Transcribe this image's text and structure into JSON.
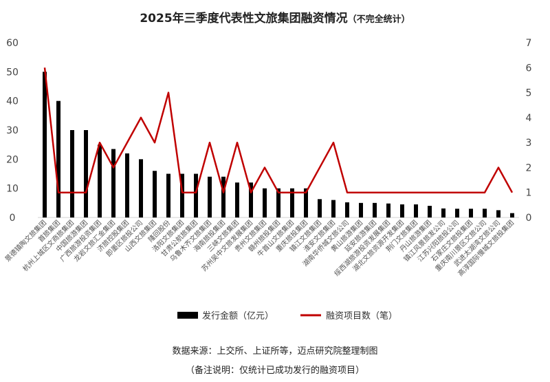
{
  "chart_data": {
    "type": "bar",
    "title": "2025年三季度代表性文旅集团融资情况",
    "title_suffix": "（不完全统计）",
    "categories": [
      "景德镇陶文旅集团",
      "首旅集团",
      "杭州上城区文商旅集团",
      "中国旅游集团",
      "广西旅游投资集团",
      "龙岩文旅汇金集团",
      "济旅控股集团",
      "即墨区旅投公司",
      "山西文旅集团",
      "隆回股份",
      "洛阳文旅集团",
      "甘肃公航旅集团",
      "乌鲁木齐文旅集团",
      "海南旅投集团",
      "三峡文旅集团",
      "苏州吴中文旅发展集团",
      "贵州文旅集团",
      "赣州旅投集团",
      "牛首山文旅集团",
      "重庆旅投集团",
      "镇江文旅集团",
      "淮安文旅集团",
      "湖南华侨城文旅公司",
      "黄山旅游集团",
      "延安旅游集团",
      "绥西湖旅游投资发展集团",
      "湖北文旅资源开发集团",
      "荆门文旅集团",
      "丹山旅游集团",
      "镇江风景旅发公司",
      "江苏兴阳旅投公司",
      "石家庄文旅投集团",
      "重庆南川景区文旅公司",
      "武进太湖湾文旅公司",
      "高淳国际慢城文旅投集团"
    ],
    "series": [
      {
        "name": "发行金额（亿元）",
        "type": "bar",
        "axis": "left",
        "color": "#000000",
        "values": [
          50,
          40,
          30,
          30,
          25,
          23.5,
          22,
          20,
          16,
          15,
          15,
          15,
          14,
          14,
          12,
          12,
          10,
          10,
          10,
          10,
          6.3,
          6,
          5.2,
          5,
          5,
          4.8,
          4.5,
          4.5,
          4,
          3.1,
          3,
          3,
          3,
          2.5,
          1.5
        ]
      },
      {
        "name": "融资项目数（笔）",
        "type": "line",
        "axis": "right",
        "color": "#c00000",
        "values": [
          6,
          1,
          1,
          1,
          3,
          2,
          3,
          4,
          3,
          5,
          1,
          1,
          3,
          1,
          3,
          1,
          2,
          1,
          1,
          1,
          2,
          3,
          1,
          1,
          1,
          1,
          1,
          1,
          1,
          1,
          1,
          1,
          1,
          2,
          1
        ]
      }
    ],
    "y_left": {
      "min": 0,
      "max": 60,
      "ticks": [
        0,
        10,
        20,
        30,
        40,
        50,
        60
      ]
    },
    "y_right": {
      "min": 0,
      "max": 7,
      "ticks": [
        0,
        1,
        2,
        3,
        4,
        5,
        6,
        7
      ]
    },
    "legend_position": "bottom",
    "grid": false
  },
  "footer": {
    "source": "数据来源：上交所、上证所等，迈点研究院整理制图",
    "note": "（备注说明：仅统计已成功发行的融资项目）"
  }
}
